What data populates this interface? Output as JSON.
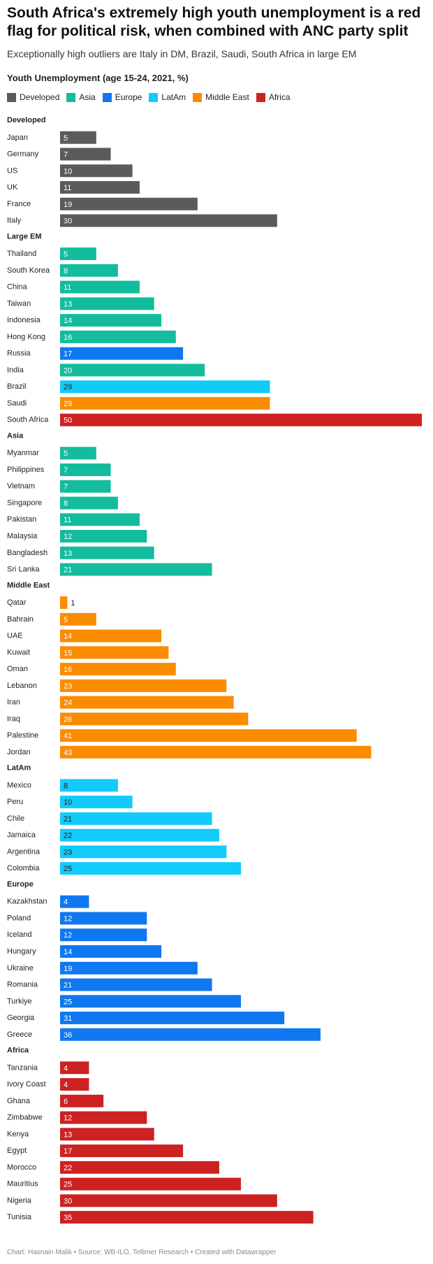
{
  "header": {
    "title": "South Africa's extremely high youth unemployment is a red flag for political risk, when combined with ANC party split",
    "subtitle": "Exceptionally high outliers are Italy in DM, Brazil, Saudi, South Africa in large EM",
    "chart_heading": "Youth Unemployment (age 15-24, 2021, %)"
  },
  "legend": [
    {
      "name": "Developed",
      "color": "#5b5b5b"
    },
    {
      "name": "Asia",
      "color": "#13bc9c"
    },
    {
      "name": "Europe",
      "color": "#0f78f0"
    },
    {
      "name": "LatAm",
      "color": "#11cbfb"
    },
    {
      "name": "Middle East",
      "color": "#fb8c00"
    },
    {
      "name": "Africa",
      "color": "#cc2222"
    }
  ],
  "chart_data": {
    "type": "bar",
    "orientation": "horizontal",
    "title": "Youth Unemployment (age 15-24, 2021, %)",
    "xlim": [
      0,
      50
    ],
    "grid": false,
    "legend_position": "top-left",
    "groups": [
      {
        "name": "Developed",
        "items": [
          {
            "label": "Japan",
            "value": 5,
            "region": "Developed"
          },
          {
            "label": "Germany",
            "value": 7,
            "region": "Developed"
          },
          {
            "label": "US",
            "value": 10,
            "region": "Developed"
          },
          {
            "label": "UK",
            "value": 11,
            "region": "Developed"
          },
          {
            "label": "France",
            "value": 19,
            "region": "Developed"
          },
          {
            "label": "Italy",
            "value": 30,
            "region": "Developed"
          }
        ]
      },
      {
        "name": "Large EM",
        "items": [
          {
            "label": "Thailand",
            "value": 5,
            "region": "Asia"
          },
          {
            "label": "South Korea",
            "value": 8,
            "region": "Asia"
          },
          {
            "label": "China",
            "value": 11,
            "region": "Asia"
          },
          {
            "label": "Taiwan",
            "value": 13,
            "region": "Asia"
          },
          {
            "label": "Indonesia",
            "value": 14,
            "region": "Asia"
          },
          {
            "label": "Hong Kong",
            "value": 16,
            "region": "Asia"
          },
          {
            "label": "Russia",
            "value": 17,
            "region": "Europe"
          },
          {
            "label": "India",
            "value": 20,
            "region": "Asia"
          },
          {
            "label": "Brazil",
            "value": 29,
            "region": "LatAm"
          },
          {
            "label": "Saudi",
            "value": 29,
            "region": "Middle East"
          },
          {
            "label": "South Africa",
            "value": 50,
            "region": "Africa"
          }
        ]
      },
      {
        "name": "Asia",
        "items": [
          {
            "label": "Myanmar",
            "value": 5,
            "region": "Asia"
          },
          {
            "label": "Philippines",
            "value": 7,
            "region": "Asia"
          },
          {
            "label": "Vietnam",
            "value": 7,
            "region": "Asia"
          },
          {
            "label": "Singapore",
            "value": 8,
            "region": "Asia"
          },
          {
            "label": "Pakistan",
            "value": 11,
            "region": "Asia"
          },
          {
            "label": "Malaysia",
            "value": 12,
            "region": "Asia"
          },
          {
            "label": "Bangladesh",
            "value": 13,
            "region": "Asia"
          },
          {
            "label": "Sri Lanka",
            "value": 21,
            "region": "Asia"
          }
        ]
      },
      {
        "name": "Middle East",
        "items": [
          {
            "label": "Qatar",
            "value": 1,
            "region": "Middle East"
          },
          {
            "label": "Bahrain",
            "value": 5,
            "region": "Middle East"
          },
          {
            "label": "UAE",
            "value": 14,
            "region": "Middle East"
          },
          {
            "label": "Kuwait",
            "value": 15,
            "region": "Middle East"
          },
          {
            "label": "Oman",
            "value": 16,
            "region": "Middle East"
          },
          {
            "label": "Lebanon",
            "value": 23,
            "region": "Middle East"
          },
          {
            "label": "Iran",
            "value": 24,
            "region": "Middle East"
          },
          {
            "label": "Iraq",
            "value": 26,
            "region": "Middle East"
          },
          {
            "label": "Palestine",
            "value": 41,
            "region": "Middle East"
          },
          {
            "label": "Jordan",
            "value": 43,
            "region": "Middle East"
          }
        ]
      },
      {
        "name": "LatAm",
        "items": [
          {
            "label": "Mexico",
            "value": 8,
            "region": "LatAm"
          },
          {
            "label": "Peru",
            "value": 10,
            "region": "LatAm"
          },
          {
            "label": "Chile",
            "value": 21,
            "region": "LatAm"
          },
          {
            "label": "Jamaica",
            "value": 22,
            "region": "LatAm"
          },
          {
            "label": "Argentina",
            "value": 23,
            "region": "LatAm"
          },
          {
            "label": "Colombia",
            "value": 25,
            "region": "LatAm"
          }
        ]
      },
      {
        "name": "Europe",
        "items": [
          {
            "label": "Kazakhstan",
            "value": 4,
            "region": "Europe"
          },
          {
            "label": "Poland",
            "value": 12,
            "region": "Europe"
          },
          {
            "label": "Iceland",
            "value": 12,
            "region": "Europe"
          },
          {
            "label": "Hungary",
            "value": 14,
            "region": "Europe"
          },
          {
            "label": "Ukraine",
            "value": 19,
            "region": "Europe"
          },
          {
            "label": "Romania",
            "value": 21,
            "region": "Europe"
          },
          {
            "label": "Turkiye",
            "value": 25,
            "region": "Europe"
          },
          {
            "label": "Georgia",
            "value": 31,
            "region": "Europe"
          },
          {
            "label": "Greece",
            "value": 36,
            "region": "Europe"
          }
        ]
      },
      {
        "name": "Africa",
        "items": [
          {
            "label": "Tanzania",
            "value": 4,
            "region": "Africa"
          },
          {
            "label": "Ivory Coast",
            "value": 4,
            "region": "Africa"
          },
          {
            "label": "Ghana",
            "value": 6,
            "region": "Africa"
          },
          {
            "label": "Zimbabwe",
            "value": 12,
            "region": "Africa"
          },
          {
            "label": "Kenya",
            "value": 13,
            "region": "Africa"
          },
          {
            "label": "Egypt",
            "value": 17,
            "region": "Africa"
          },
          {
            "label": "Morocco",
            "value": 22,
            "region": "Africa"
          },
          {
            "label": "Mauritius",
            "value": 25,
            "region": "Africa"
          },
          {
            "label": "Nigeria",
            "value": 30,
            "region": "Africa"
          },
          {
            "label": "Tunisia",
            "value": 35,
            "region": "Africa"
          }
        ]
      }
    ]
  },
  "footer": {
    "text": "Chart: Hasnain Malik • Source: WB-ILO, Tellimer Research • Created with Datawrapper"
  }
}
